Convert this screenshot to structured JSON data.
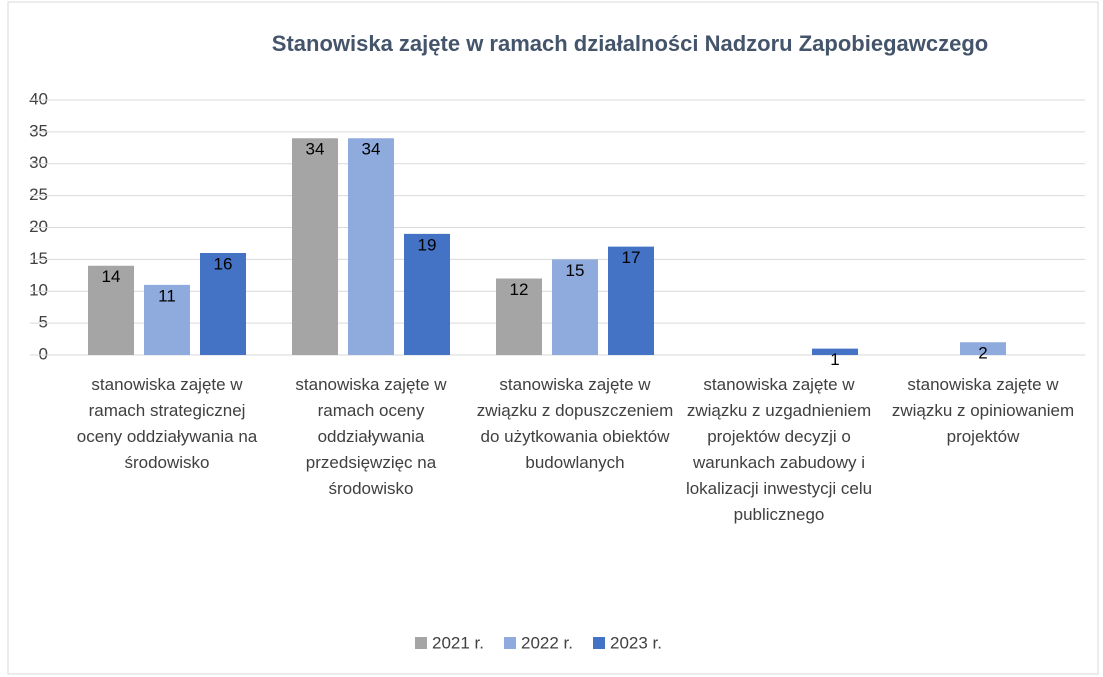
{
  "chart_data": {
    "type": "bar",
    "title": "Stanowiska zajęte w ramach działalności Nadzoru Zapobiegawczego",
    "categories": [
      "stanowiska zajęte w ramach strategicznej oceny oddziaływania na środowisko",
      "stanowiska zajęte w ramach oceny oddziaływania przedsięwzięc na środowisko",
      "stanowiska zajęte w związku z dopuszczeniem do użytkowania obiektów budowlanych",
      "stanowiska zajęte w związku z uzgadnieniem projektów decyzji o warunkach zabudowy i lokalizacji inwestycji celu publicznego",
      "stanowiska zajęte w związku z opiniowaniem projektów"
    ],
    "series": [
      {
        "name": "2021 r.",
        "color": "#a5a5a5",
        "values": [
          14,
          34,
          12,
          null,
          null
        ]
      },
      {
        "name": "2022 r.",
        "color": "#8faadc",
        "values": [
          11,
          34,
          15,
          null,
          2
        ]
      },
      {
        "name": "2023 r.",
        "color": "#4472c4",
        "values": [
          16,
          19,
          17,
          1,
          null
        ]
      }
    ],
    "ylim": [
      0,
      40
    ],
    "yticks": [
      0,
      5,
      10,
      15,
      20,
      25,
      30,
      35,
      40
    ],
    "grid": true,
    "legend": "bottom"
  }
}
